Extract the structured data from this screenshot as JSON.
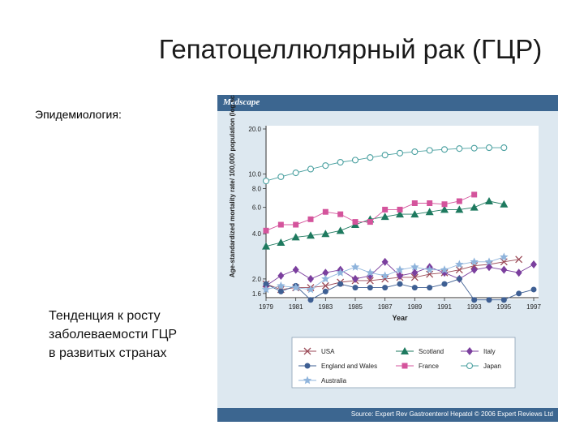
{
  "slide": {
    "title": "Гепатоцеллюлярный рак (ГЦР)",
    "subtitle": "Эпидемиология:",
    "trend_text": "Тенденция к росту заболеваемости ГЦР в развитых странах"
  },
  "figure": {
    "brand": "Medscape",
    "source": "Source: Expert Rev Gastroenterol Hepatol © 2006 Expert Reviews Ltd"
  },
  "chart_data": {
    "type": "line",
    "xlabel": "Year",
    "ylabel": "Age-standardized mortality rate/ 100,000 population (log scale)",
    "yscale": "log",
    "ylim": [
      1.5,
      20.0
    ],
    "xlim": [
      1979,
      1997
    ],
    "x_ticks": [
      "1979",
      "1981",
      "1983",
      "1985",
      "1987",
      "1989",
      "1991",
      "1993",
      "1995",
      "1997"
    ],
    "y_ticks": [
      "1.6",
      "2.0",
      "4.0",
      "6.0",
      "8.0",
      "10.0",
      "20.0"
    ],
    "y_tick_values": [
      1.6,
      2.0,
      4.0,
      6.0,
      8.0,
      10.0,
      20.0
    ],
    "legend": "bottom",
    "series": [
      {
        "name": "USA",
        "color": "#9b4a57",
        "marker": "x",
        "x": [
          1979,
          1980,
          1981,
          1982,
          1983,
          1984,
          1985,
          1986,
          1987,
          1988,
          1989,
          1990,
          1991,
          1992,
          1993,
          1994,
          1995,
          1996
        ],
        "y": [
          1.85,
          1.7,
          1.75,
          1.75,
          1.8,
          1.9,
          1.95,
          1.95,
          2.0,
          2.05,
          2.05,
          2.15,
          2.2,
          2.3,
          2.45,
          2.5,
          2.6,
          2.7
        ]
      },
      {
        "name": "Scotland",
        "color": "#1e7a5f",
        "marker": "triangle",
        "x": [
          1979,
          1980,
          1981,
          1982,
          1983,
          1984,
          1985,
          1986,
          1987,
          1988,
          1989,
          1990,
          1991,
          1992,
          1993,
          1994,
          1995
        ],
        "y": [
          3.3,
          3.5,
          3.8,
          3.9,
          4.0,
          4.2,
          4.6,
          5.0,
          5.2,
          5.4,
          5.4,
          5.6,
          5.8,
          5.8,
          6.0,
          6.6,
          6.3
        ]
      },
      {
        "name": "Italy",
        "color": "#7b3f9e",
        "marker": "diamond",
        "x": [
          1979,
          1980,
          1981,
          1982,
          1983,
          1984,
          1985,
          1986,
          1987,
          1988,
          1989,
          1990,
          1991,
          1992,
          1993,
          1994,
          1995,
          1996,
          1997
        ],
        "y": [
          1.8,
          2.1,
          2.3,
          2.0,
          2.2,
          2.3,
          2.0,
          2.1,
          2.6,
          2.1,
          2.2,
          2.4,
          2.2,
          2.0,
          2.3,
          2.4,
          2.3,
          2.2,
          2.5
        ]
      },
      {
        "name": "England and Wales",
        "color": "#3e5f93",
        "marker": "circle",
        "x": [
          1979,
          1980,
          1981,
          1982,
          1983,
          1984,
          1985,
          1986,
          1987,
          1988,
          1989,
          1990,
          1991,
          1992,
          1993,
          1994,
          1995,
          1996,
          1997
        ],
        "y": [
          1.85,
          1.65,
          1.8,
          1.45,
          1.65,
          1.85,
          1.75,
          1.75,
          1.75,
          1.85,
          1.75,
          1.75,
          1.85,
          2.0,
          1.45,
          1.45,
          1.45,
          1.6,
          1.7
        ]
      },
      {
        "name": "France",
        "color": "#d4549c",
        "marker": "square",
        "x": [
          1979,
          1980,
          1981,
          1982,
          1983,
          1984,
          1985,
          1986,
          1987,
          1988,
          1989,
          1990,
          1991,
          1992,
          1993
        ],
        "y": [
          4.2,
          4.6,
          4.6,
          5.0,
          5.6,
          5.4,
          4.8,
          4.8,
          5.8,
          5.8,
          6.4,
          6.4,
          6.3,
          6.6,
          7.3
        ]
      },
      {
        "name": "Japan",
        "color": "#4aa0a0",
        "marker": "open-circle",
        "x": [
          1979,
          1980,
          1981,
          1982,
          1983,
          1984,
          1985,
          1986,
          1987,
          1988,
          1989,
          1990,
          1991,
          1992,
          1993,
          1994,
          1995
        ],
        "y": [
          9.0,
          9.6,
          10.2,
          10.8,
          11.4,
          12.0,
          12.4,
          12.9,
          13.4,
          13.8,
          14.1,
          14.4,
          14.6,
          14.8,
          14.9,
          15.0,
          15.0
        ]
      },
      {
        "name": "Australia",
        "color": "#8fb4dc",
        "marker": "star",
        "x": [
          1979,
          1980,
          1981,
          1982,
          1983,
          1984,
          1985,
          1986,
          1987,
          1988,
          1989,
          1990,
          1991,
          1992,
          1993,
          1994,
          1995
        ],
        "y": [
          1.7,
          1.8,
          1.75,
          1.7,
          2.0,
          2.2,
          2.4,
          2.2,
          2.1,
          2.3,
          2.4,
          2.3,
          2.3,
          2.5,
          2.6,
          2.6,
          2.8
        ]
      }
    ]
  }
}
